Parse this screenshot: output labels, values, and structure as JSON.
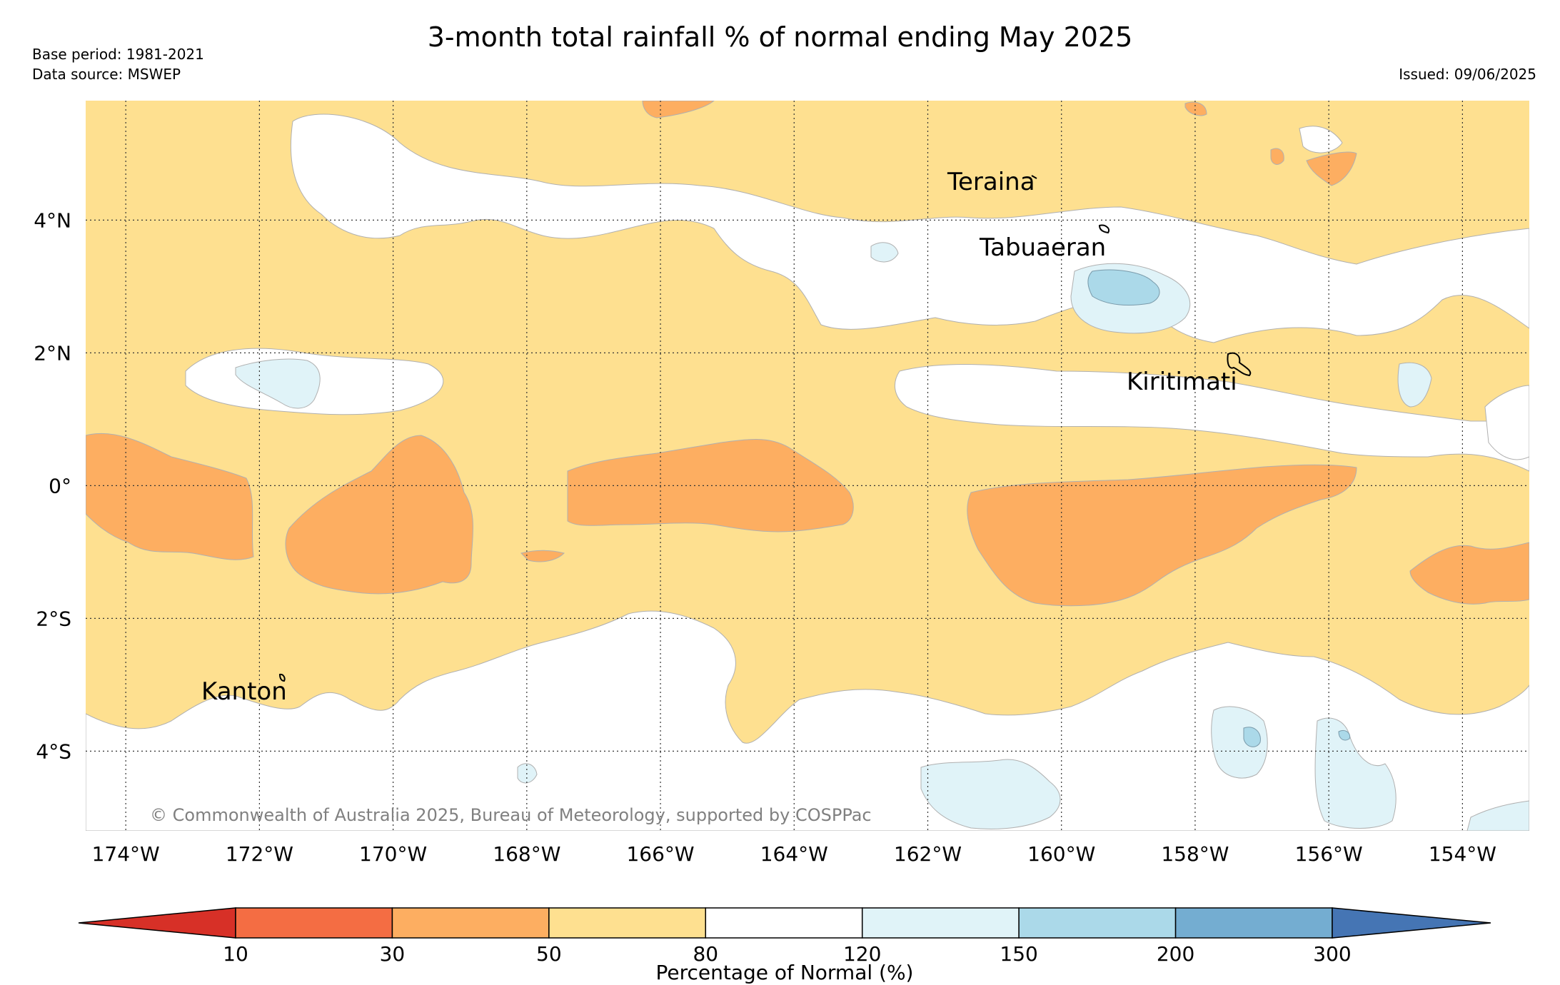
{
  "title": "3-month total rainfall % of normal ending May 2025",
  "base_period": "Base period: 1981-2021",
  "data_source": "Data source: MSWEP",
  "issued": "Issued: 09/06/2025",
  "copyright": "© Commonwealth of Australia 2025, Bureau of Meteorology, supported by COSPPac",
  "map": {
    "lat_range": [
      -5.2,
      5.8
    ],
    "lon_range": [
      -174.6,
      -153.0
    ],
    "longitude_labels": [
      "174°W",
      "172°W",
      "170°W",
      "168°W",
      "166°W",
      "164°W",
      "162°W",
      "160°W",
      "158°W",
      "156°W",
      "154°W"
    ],
    "latitude_labels": [
      "4°N",
      "2°N",
      "0°",
      "2°S",
      "4°S"
    ],
    "gridlines": true,
    "places": [
      "Teraina",
      "Tabuaeran",
      "Kiritimati",
      "Kanton"
    ]
  },
  "colorbar": {
    "title": "Percentage of Normal (%)",
    "tick_labels": [
      "10",
      "30",
      "50",
      "80",
      "120",
      "150",
      "200",
      "300"
    ],
    "bins": [
      {
        "range": "<10",
        "color": "#d73027"
      },
      {
        "range": "10-30",
        "color": "#f46d43"
      },
      {
        "range": "30-50",
        "color": "#fdae61"
      },
      {
        "range": "50-80",
        "color": "#fee090"
      },
      {
        "range": "80-120",
        "color": "#ffffff"
      },
      {
        "range": "120-150",
        "color": "#e0f3f8"
      },
      {
        "range": "150-200",
        "color": "#abd9e9"
      },
      {
        "range": "200-300",
        "color": "#74add1"
      },
      {
        "range": ">300",
        "color": "#4575b4"
      }
    ]
  }
}
